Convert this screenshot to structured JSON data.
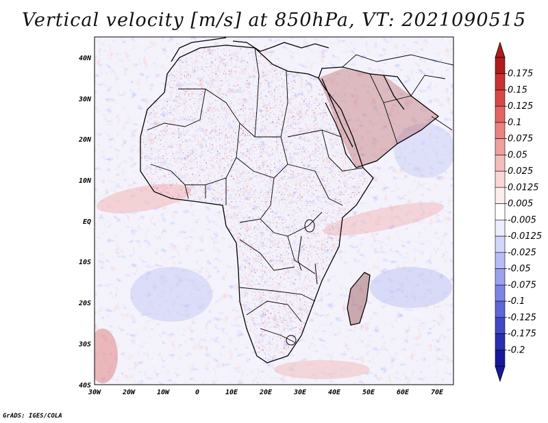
{
  "title": "Vertical velocity [m/s] at 850hPa, VT: 2021090515",
  "credit": "GrADS: IGES/COLA",
  "axes": {
    "lon_labels": [
      "30W",
      "20W",
      "10W",
      "0",
      "10E",
      "20E",
      "30E",
      "40E",
      "50E",
      "60E",
      "70E"
    ],
    "lat_labels": [
      "40N",
      "30N",
      "20N",
      "10N",
      "EQ",
      "10S",
      "20S",
      "30S",
      "40S"
    ]
  },
  "colorbar": {
    "levels": [
      "0.175",
      "0.15",
      "0.125",
      "0.1",
      "0.075",
      "0.05",
      "0.025",
      "0.0125",
      "0.005",
      "-0.005",
      "-0.0125",
      "-0.025",
      "-0.05",
      "-0.075",
      "-0.1",
      "-0.125",
      "-0.175",
      "-0.2"
    ],
    "colors": [
      "#b01c1c",
      "#c83232",
      "#d94848",
      "#e36464",
      "#ea8282",
      "#f09e9e",
      "#f5bcbc",
      "#fad6d6",
      "#fdeeee",
      "#ffffff",
      "#eceeff",
      "#d2d6fb",
      "#b6bcf5",
      "#9aa2ee",
      "#7c84e4",
      "#5e66d8",
      "#4048c8",
      "#2a2fb0",
      "#18199a"
    ],
    "top_arrow_color": "#b01c1c",
    "bottom_arrow_color": "#18199a"
  }
}
